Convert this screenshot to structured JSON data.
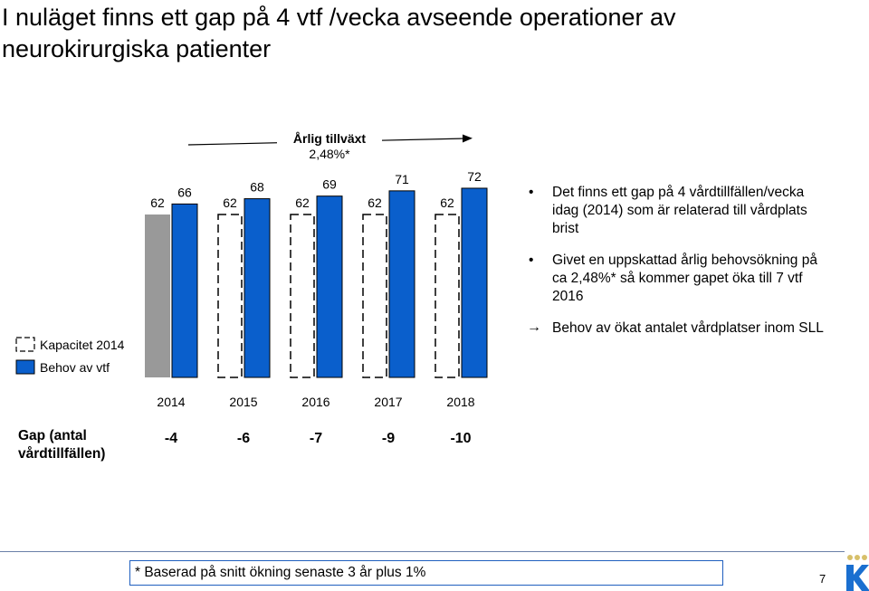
{
  "title": "I nuläget finns ett gap på 4 vtf /vecka avseende operationer av neurokirurgiska patienter",
  "chart_data": {
    "type": "bar",
    "categories": [
      "2014",
      "2015",
      "2016",
      "2017",
      "2018"
    ],
    "series": [
      {
        "name": "Kapacitet 2014",
        "values": [
          62,
          62,
          62,
          62,
          62
        ],
        "color": "#999999",
        "style": "solid-first-then-dashed-outline"
      },
      {
        "name": "Behov av vtf",
        "values": [
          66,
          68,
          69,
          71,
          72
        ],
        "color": "#0a5fcc"
      }
    ],
    "growth_label": "Årlig tillväxt\n2,48%*",
    "gap_label": "Gap (antal\nvårdtillfällen)",
    "gaps": [
      "-4",
      "-6",
      "-7",
      "-9",
      "-10"
    ]
  },
  "bullets": [
    {
      "marker": "•",
      "text": "Det finns ett gap på 4 vårdtillfällen/vecka  idag (2014) som är relaterad till vårdplats brist"
    },
    {
      "marker": "•",
      "text": "Givet en uppskattad årlig behovsökning på ca 2,48%* så kommer gapet öka till 7 vtf 2016"
    },
    {
      "marker": "→",
      "text": "Behov av ökat antalet vårdplatser inom SLL"
    }
  ],
  "footnote": "* Baserad på snitt ökning senaste 3 år plus 1%",
  "page_number": "7",
  "colors": {
    "blue": "#0a5fcc",
    "gray": "#999999",
    "border": "#1f5fbf"
  }
}
